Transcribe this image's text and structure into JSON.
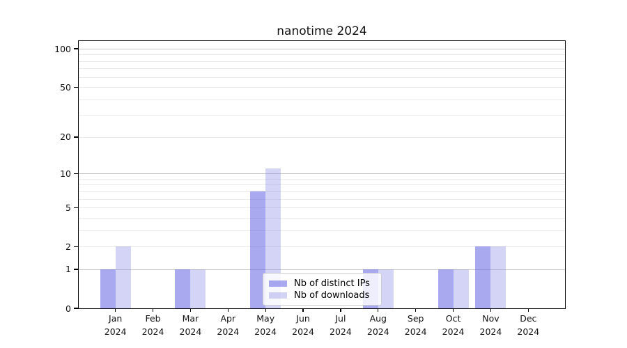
{
  "title": "nanotime 2024",
  "colors": {
    "ips_bar": "rgba(102,102,228,0.56)",
    "downloads_bar": "rgba(138,138,232,0.37)",
    "grid_major": "#c6c6c6",
    "grid_minor": "#e9e9e9",
    "axis": "#000000",
    "legend_border": "#cccccc"
  },
  "legend": {
    "items": [
      {
        "label": "Nb of distinct IPs",
        "swatch": "ips"
      },
      {
        "label": "Nb of downloads",
        "swatch": "downloads"
      }
    ]
  },
  "chart_data": {
    "type": "bar",
    "title": "nanotime 2024",
    "xlabel": "",
    "ylabel": "",
    "year_label": "2024",
    "categories": [
      "Jan",
      "Feb",
      "Mar",
      "Apr",
      "May",
      "Jun",
      "Jul",
      "Aug",
      "Sep",
      "Oct",
      "Nov",
      "Dec"
    ],
    "series": [
      {
        "name": "Nb of distinct IPs",
        "values": [
          1,
          0,
          1,
          0,
          7,
          0,
          0,
          1,
          0,
          1,
          2,
          0
        ]
      },
      {
        "name": "Nb of downloads",
        "values": [
          2,
          0,
          1,
          0,
          11,
          0,
          0,
          1,
          0,
          1,
          2,
          0
        ]
      }
    ],
    "yscale": "log-like (y proportional to log10(1+v))",
    "y_ticks": [
      0,
      1,
      2,
      5,
      10,
      20,
      50,
      100
    ],
    "y_major_gridlines": [
      1,
      10,
      100
    ],
    "y_minor_gridlines": [
      2,
      3,
      4,
      5,
      6,
      7,
      8,
      9,
      20,
      30,
      40,
      50,
      60,
      70,
      80,
      90
    ],
    "ylim": [
      0,
      115
    ],
    "grid": true,
    "legend_position": "lower center"
  }
}
